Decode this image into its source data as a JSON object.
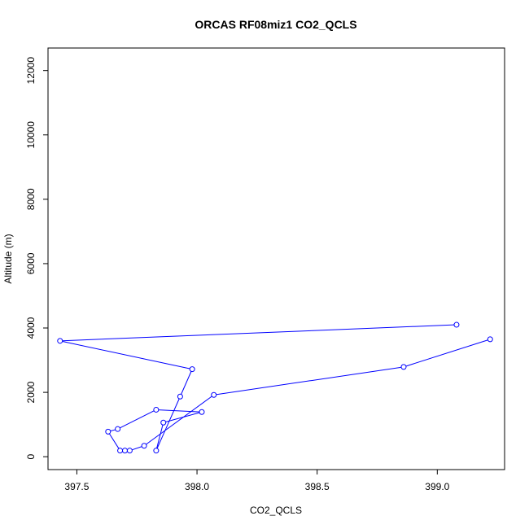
{
  "chart_data": {
    "type": "line",
    "title": "ORCAS RF08miz1 CO2_QCLS",
    "xlabel": "CO2_QCLS",
    "ylabel": "Altitude (m)",
    "xlim": [
      397.38,
      399.28
    ],
    "ylim": [
      -400,
      12700
    ],
    "x_ticks": [
      397.5,
      398.0,
      398.5,
      399.0
    ],
    "x_tick_labels": [
      "397.5",
      "398.0",
      "398.5",
      "399.0"
    ],
    "y_ticks": [
      0,
      2000,
      4000,
      6000,
      8000,
      10000,
      12000
    ],
    "y_tick_labels": [
      "0",
      "2000",
      "4000",
      "6000",
      "8000",
      "10000",
      "12000"
    ],
    "grid": false,
    "series": [
      {
        "color": "#0000ff",
        "marker": "open-circle",
        "x": [
          399.08,
          397.43,
          397.98,
          397.93,
          397.83,
          397.86,
          398.02,
          397.83,
          397.67,
          397.63,
          397.68,
          397.7,
          397.72,
          397.78,
          398.07,
          398.86,
          399.22
        ],
        "y": [
          4100,
          3600,
          2720,
          1870,
          190,
          1060,
          1390,
          1460,
          860,
          780,
          190,
          190,
          190,
          340,
          1920,
          2790,
          3650
        ]
      }
    ]
  }
}
